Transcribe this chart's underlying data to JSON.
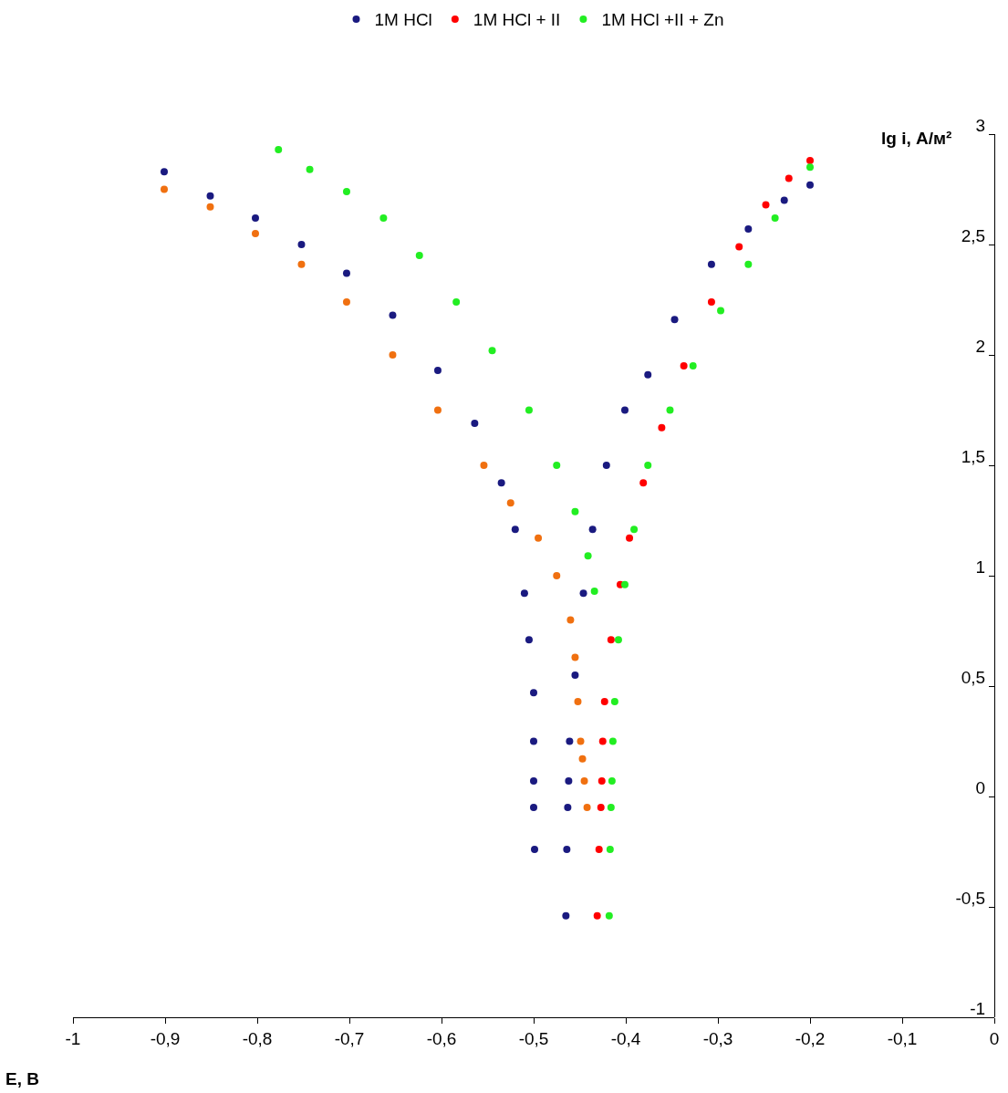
{
  "chart_data": {
    "type": "scatter",
    "xlabel": "E, В",
    "ylabel": "lg i, А/м²",
    "xlim": [
      -1,
      0
    ],
    "xticks": [
      -1,
      {
        "value": -0.9,
        "label": "-0,9"
      },
      {
        "value": -0.8,
        "label": "-0,8"
      },
      {
        "value": -0.7,
        "label": "-0,7"
      },
      {
        "value": -0.6,
        "label": "-0,6"
      },
      {
        "value": -0.5,
        "label": "-0,5"
      },
      {
        "value": -0.4,
        "label": "-0,4"
      },
      {
        "value": -0.3,
        "label": "-0,3"
      },
      {
        "value": -0.2,
        "label": "-0,2"
      },
      {
        "value": -0.1,
        "label": "-0,1"
      },
      0
    ],
    "ylim": [
      -1,
      3
    ],
    "yticks": [
      -1,
      {
        "value": -0.5,
        "label": "-0,5"
      },
      0,
      {
        "value": 0.5,
        "label": "0,5"
      },
      1,
      {
        "value": 1.5,
        "label": "1,5"
      },
      2,
      {
        "value": 2.5,
        "label": "2,5"
      },
      3
    ],
    "grid": false,
    "legend": "top",
    "marker": "circle",
    "series": [
      {
        "name": "1M HCl",
        "color": "#1a1a80",
        "x": [
          -0.901,
          -0.851,
          -0.802,
          -0.752,
          -0.703,
          -0.653,
          -0.604,
          -0.564,
          -0.535,
          -0.52,
          -0.51,
          -0.505,
          -0.5,
          -0.5,
          -0.5,
          -0.5,
          -0.499,
          -0.465,
          -0.464,
          -0.463,
          -0.462,
          -0.461,
          -0.455,
          -0.446,
          -0.436,
          -0.421,
          -0.401,
          -0.376,
          -0.347,
          -0.307,
          -0.267,
          -0.228,
          -0.2
        ],
        "values": [
          2.83,
          2.72,
          2.62,
          2.5,
          2.37,
          2.18,
          1.93,
          1.69,
          1.42,
          1.21,
          0.92,
          0.71,
          0.47,
          0.25,
          0.07,
          -0.05,
          -0.24,
          -0.54,
          -0.24,
          -0.05,
          0.07,
          0.25,
          0.55,
          0.92,
          1.21,
          1.5,
          1.75,
          1.91,
          2.16,
          2.41,
          2.57,
          2.7,
          2.77
        ]
      },
      {
        "color": "#f07010",
        "x": [
          -0.901,
          -0.851,
          -0.802,
          -0.752,
          -0.703,
          -0.653,
          -0.604,
          -0.554,
          -0.525,
          -0.495,
          -0.475,
          -0.46,
          -0.455,
          -0.452,
          -0.449,
          -0.447,
          -0.445,
          -0.442
        ],
        "values": [
          2.75,
          2.67,
          2.55,
          2.41,
          2.24,
          2.0,
          1.75,
          1.5,
          1.33,
          1.17,
          1.0,
          0.8,
          0.63,
          0.43,
          0.25,
          0.17,
          0.07,
          -0.05
        ]
      },
      {
        "name": "1M HCl + II",
        "color": "#ff0000",
        "x": [
          -0.431,
          -0.429,
          -0.427,
          -0.426,
          -0.425,
          -0.423,
          -0.416,
          -0.406,
          -0.396,
          -0.381,
          -0.361,
          -0.337,
          -0.307,
          -0.277,
          -0.248,
          -0.223,
          -0.2
        ],
        "values": [
          -0.54,
          -0.24,
          -0.05,
          0.07,
          0.25,
          0.43,
          0.71,
          0.96,
          1.17,
          1.42,
          1.67,
          1.95,
          2.24,
          2.49,
          2.68,
          2.8,
          2.88
        ]
      },
      {
        "name": "1M HCl +II + Zn",
        "color": "#22ee22",
        "x": [
          -0.777,
          -0.743,
          -0.703,
          -0.663,
          -0.624,
          -0.584,
          -0.545,
          -0.505,
          -0.475,
          -0.455,
          -0.441,
          -0.434,
          -0.418,
          -0.417,
          -0.416,
          -0.415,
          -0.414,
          -0.412,
          -0.408,
          -0.401,
          -0.391,
          -0.376,
          -0.352,
          -0.327,
          -0.297,
          -0.267,
          -0.238,
          -0.2
        ],
        "values": [
          2.93,
          2.84,
          2.74,
          2.62,
          2.45,
          2.24,
          2.02,
          1.75,
          1.5,
          1.29,
          1.09,
          0.93,
          -0.54,
          -0.24,
          -0.05,
          0.07,
          0.25,
          0.43,
          0.71,
          0.96,
          1.21,
          1.5,
          1.75,
          1.95,
          2.2,
          2.41,
          2.62,
          2.85
        ]
      }
    ]
  }
}
